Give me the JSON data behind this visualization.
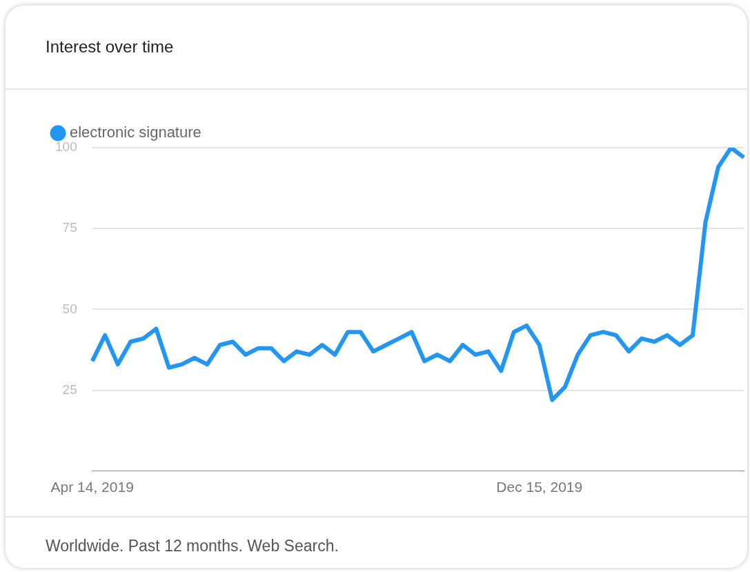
{
  "chart_data": {
    "type": "line",
    "title": "Interest over time",
    "categories": [
      "Apr 14, 2019",
      null,
      null,
      null,
      null,
      null,
      null,
      null,
      null,
      null,
      null,
      null,
      null,
      null,
      null,
      null,
      null,
      null,
      null,
      null,
      null,
      null,
      null,
      null,
      null,
      null,
      null,
      null,
      null,
      null,
      null,
      null,
      null,
      null,
      null,
      "Dec 15, 2019",
      null,
      null,
      null,
      null,
      null,
      null,
      null,
      null,
      null,
      null,
      null,
      null,
      null,
      null,
      null,
      null
    ],
    "series": [
      {
        "name": "electronic signature",
        "color": "#2196f3",
        "values": [
          34,
          42,
          33,
          40,
          41,
          44,
          32,
          33,
          35,
          33,
          39,
          40,
          36,
          38,
          38,
          34,
          37,
          36,
          39,
          36,
          43,
          43,
          37,
          39,
          41,
          43,
          34,
          36,
          34,
          39,
          36,
          37,
          31,
          43,
          45,
          39,
          22,
          26,
          36,
          42,
          43,
          42,
          37,
          41,
          40,
          42,
          39,
          42,
          77,
          94,
          100,
          97
        ]
      }
    ],
    "ylim": [
      0,
      100
    ],
    "yticks": [
      25,
      50,
      75,
      100
    ],
    "grid": "y",
    "legend": "top left",
    "marker": "none",
    "annotations": [
      "Worldwide. Past 12 months. Web Search."
    ]
  }
}
